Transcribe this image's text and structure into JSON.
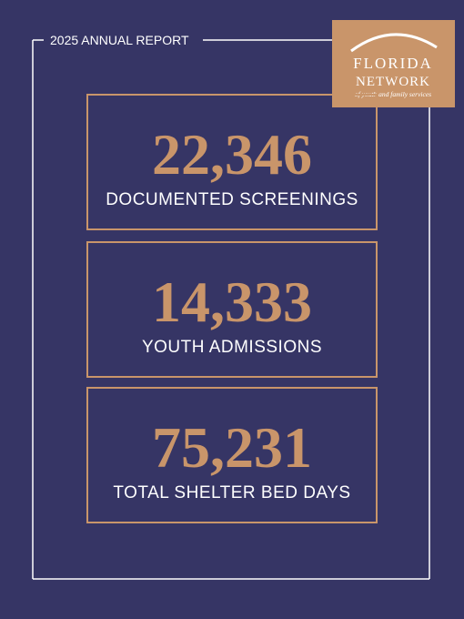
{
  "header": {
    "title": "2025 ANNUAL REPORT"
  },
  "logo": {
    "line1": "FLORIDA",
    "line2": "NETWORK",
    "tagline": "of youth and family services"
  },
  "stats": [
    {
      "value": "22,346",
      "label": "DOCUMENTED SCREENINGS"
    },
    {
      "value": "14,333",
      "label": "YOUTH ADMISSIONS"
    },
    {
      "value": "75,231",
      "label": "TOTAL SHELTER BED DAYS"
    }
  ]
}
